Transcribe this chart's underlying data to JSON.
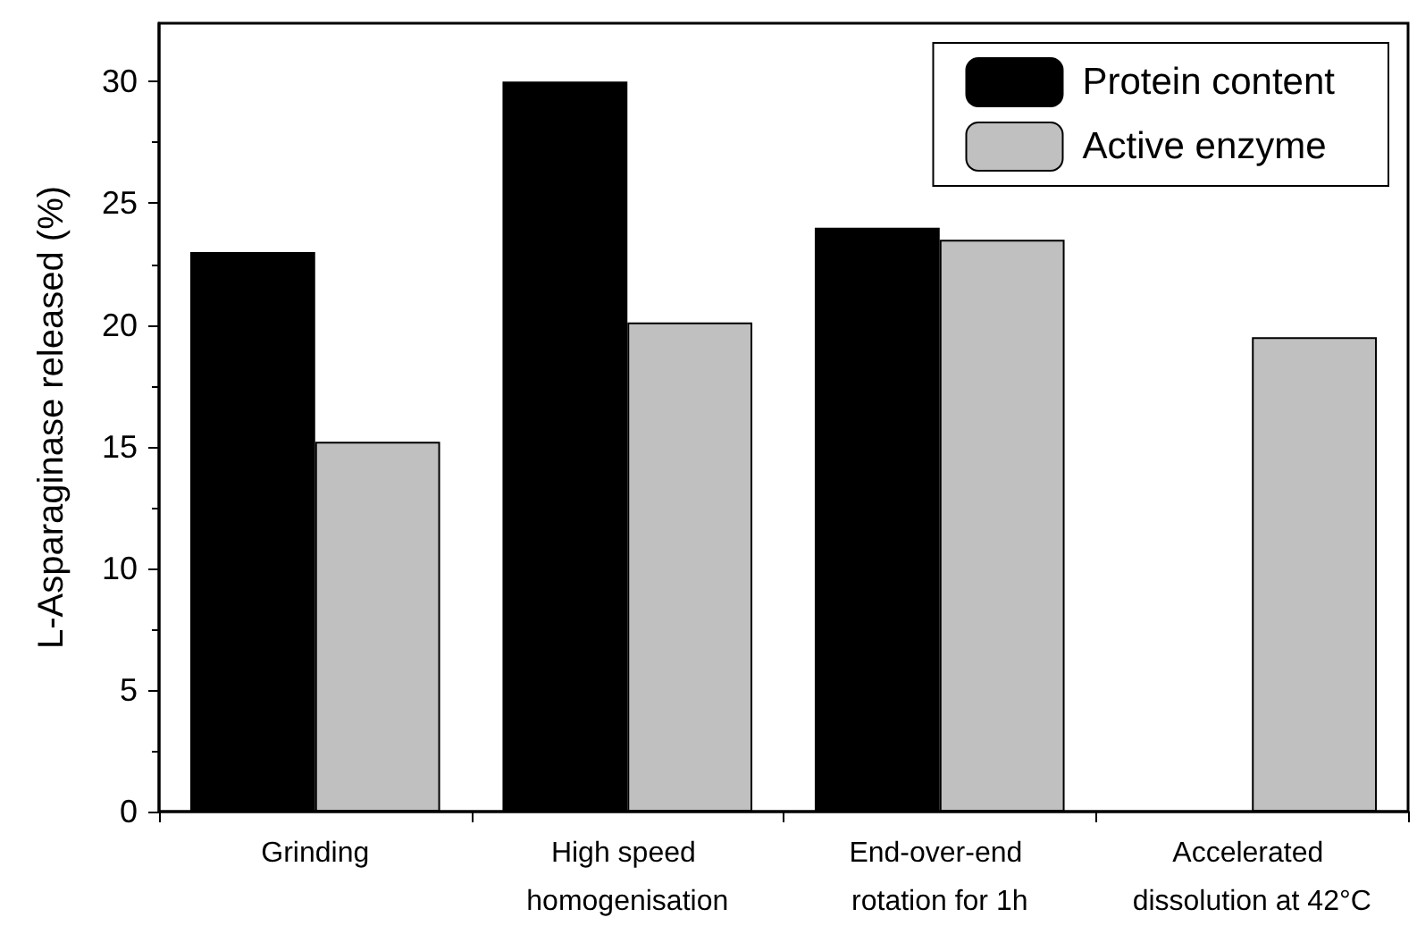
{
  "chart_data": {
    "type": "bar",
    "ylabel": "L-Asparaginase released (%)",
    "categories": [
      "Grinding",
      "High speed homogenisation",
      "End-over-end rotation for 1h",
      "Accelerated dissolution at 42°C"
    ],
    "series": [
      {
        "name": "Protein content",
        "color": "#000000",
        "values": [
          23.0,
          30.0,
          24.0,
          null
        ]
      },
      {
        "name": "Active enzyme",
        "color": "#c0c0c0",
        "values": [
          15.2,
          20.1,
          23.5,
          19.5
        ]
      }
    ],
    "ylim": [
      0,
      32.4
    ],
    "yticks": [
      0,
      5,
      10,
      15,
      20,
      25,
      30
    ],
    "grid": false,
    "legend": "top right"
  }
}
